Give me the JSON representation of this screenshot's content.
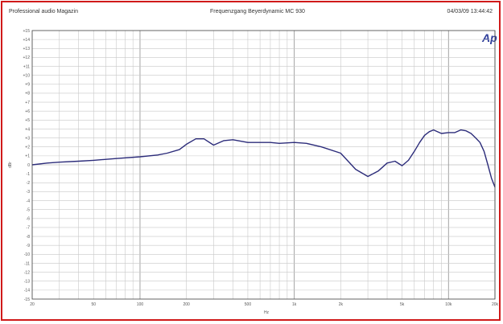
{
  "header": {
    "left": "Professional audio Magazin",
    "center": "Frequenzgang  Beyerdynamic MC 930",
    "right": "04/03/09 13:44:42"
  },
  "logo": "Ap",
  "colors": {
    "border": "#d01a1a",
    "trace": "#2c2c7a",
    "grid": "#c8c8c8",
    "logo": "#2c3c9a"
  },
  "chart_data": {
    "type": "line",
    "title": "Frequenzgang  Beyerdynamic MC 930",
    "xlabel": "Hz",
    "ylabel": "dBr",
    "xscale": "log",
    "xlim": [
      20,
      20000
    ],
    "ylim": [
      -15,
      15
    ],
    "x_tick_labels": [
      "20",
      "50",
      "100",
      "200",
      "500",
      "1k",
      "2k",
      "5k",
      "10k",
      "20k"
    ],
    "y_tick_labels": [
      "+15",
      "+14",
      "+13",
      "+12",
      "+11",
      "+10",
      "+9",
      "+8",
      "+7",
      "+6",
      "+5",
      "+4",
      "+3",
      "+2",
      "+1",
      "0",
      "-1",
      "-2",
      "-3",
      "-4",
      "-5",
      "-6",
      "-7",
      "-8",
      "-9",
      "-10",
      "-11",
      "-12",
      "-13",
      "-14",
      "-15"
    ],
    "grid": true,
    "series": [
      {
        "x": [
          20,
          25,
          30,
          40,
          50,
          70,
          100,
          130,
          150,
          180,
          200,
          230,
          260,
          300,
          350,
          400,
          500,
          600,
          700,
          800,
          1000,
          1200,
          1500,
          2000,
          2500,
          3000,
          3500,
          4000,
          4500,
          5000,
          5500,
          6000,
          6500,
          7000,
          7500,
          8000,
          9000,
          10000,
          11000,
          12000,
          13000,
          14000,
          15000,
          16000,
          17000,
          18000,
          19000,
          20000
        ],
        "y": [
          0.0,
          0.2,
          0.3,
          0.4,
          0.5,
          0.7,
          0.9,
          1.1,
          1.3,
          1.7,
          2.3,
          2.9,
          2.9,
          2.2,
          2.7,
          2.8,
          2.5,
          2.5,
          2.5,
          2.4,
          2.5,
          2.4,
          2.0,
          1.3,
          -0.5,
          -1.3,
          -0.7,
          0.2,
          0.4,
          -0.1,
          0.5,
          1.5,
          2.5,
          3.3,
          3.7,
          3.9,
          3.5,
          3.6,
          3.6,
          3.9,
          3.8,
          3.5,
          3.0,
          2.5,
          1.5,
          0.0,
          -1.5,
          -2.5
        ]
      }
    ]
  }
}
